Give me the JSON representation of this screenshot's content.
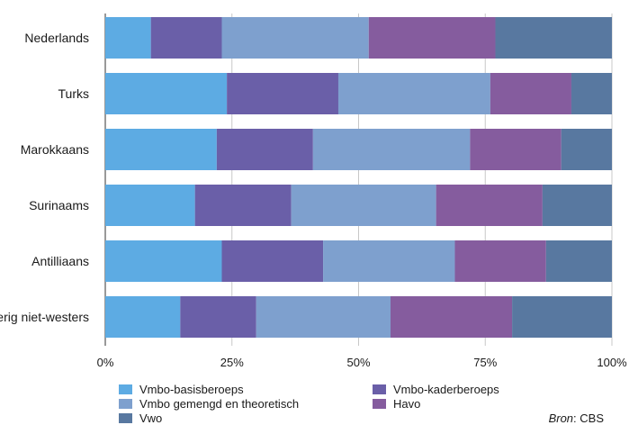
{
  "chart_data": {
    "type": "bar",
    "orientation": "horizontal",
    "stacked": true,
    "categories": [
      "Nederlands",
      "Turks",
      "Marokkaans",
      "Surinaams",
      "Antilliaans",
      "Overig niet-westers"
    ],
    "series": [
      {
        "name": "Vmbo-basisberoeps",
        "color": "#5dabe3",
        "values": [
          9,
          24,
          22,
          17.7,
          23,
          14.8
        ]
      },
      {
        "name": "Vmbo-kaderberoeps",
        "color": "#6a5fa8",
        "values": [
          14,
          22,
          19,
          19,
          20,
          15
        ]
      },
      {
        "name": "Vmbo gemengd en theoretisch",
        "color": "#7ea0ce",
        "values": [
          29,
          30,
          31,
          28.6,
          26,
          26.5
        ]
      },
      {
        "name": "Havo",
        "color": "#855c9e",
        "values": [
          25,
          16,
          18,
          21,
          18,
          24
        ]
      },
      {
        "name": "Vwo",
        "color": "#5878a0",
        "values": [
          23,
          8,
          10,
          13.7,
          13,
          19.7
        ]
      }
    ],
    "xlim": [
      0,
      100
    ],
    "ticks": [
      "0%",
      "25%",
      "50%",
      "75%",
      "100%"
    ],
    "grid": true,
    "legend_position": "bottom"
  },
  "source": {
    "label": "Bron",
    "value": ": CBS"
  }
}
